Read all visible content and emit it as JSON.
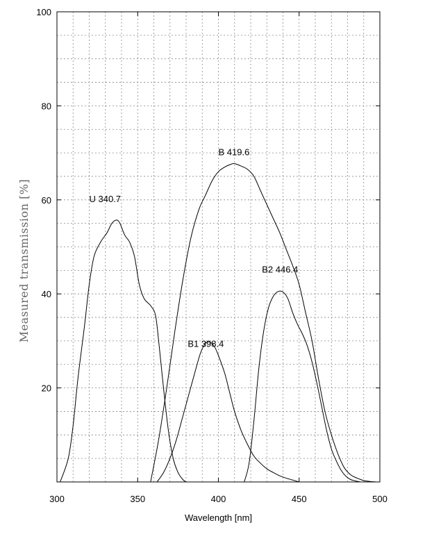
{
  "chart_data": {
    "type": "line",
    "xlabel": "Wavelength [nm]",
    "ylabel": "Measured transmission [%]",
    "xlim": [
      300,
      500
    ],
    "ylim": [
      0,
      100
    ],
    "x_ticks": [
      300,
      350,
      400,
      450,
      500
    ],
    "y_ticks": [
      20,
      40,
      60,
      80,
      100
    ],
    "grid": true,
    "annotations": [
      {
        "text": "U 340.7",
        "x": 320,
        "y": 59.5
      },
      {
        "text": "B 419.6",
        "x": 400,
        "y": 69.5
      },
      {
        "text": "B1 398.4",
        "x": 381,
        "y": 28.7
      },
      {
        "text": "B2 446.4",
        "x": 427,
        "y": 44.5
      }
    ],
    "series": [
      {
        "name": "U",
        "x": [
          302,
          307,
          310,
          313,
          317,
          320,
          323,
          327,
          331,
          334,
          337,
          339,
          342,
          345,
          348,
          351,
          354,
          358,
          361,
          363,
          366,
          369,
          372,
          375,
          378,
          380
        ],
        "y": [
          0,
          5,
          12,
          22,
          33,
          42,
          48,
          51,
          53,
          55,
          55.7,
          55,
          52.5,
          51,
          48,
          42,
          39,
          37.5,
          35.5,
          30,
          20,
          11,
          5,
          2,
          0.5,
          0
        ]
      },
      {
        "name": "B",
        "x": [
          358,
          363,
          368,
          373,
          378,
          383,
          388,
          392,
          396,
          400,
          404,
          408,
          410,
          414,
          418,
          422,
          426,
          430,
          434,
          438,
          442,
          446,
          450,
          454,
          458,
          462,
          466,
          470,
          474,
          478,
          482,
          486,
          490,
          494,
          498
        ],
        "y": [
          0,
          9,
          20,
          32,
          43,
          52,
          58,
          61,
          64,
          66,
          67,
          67.6,
          67.7,
          67.2,
          66.5,
          65,
          62,
          59,
          56,
          53,
          49.5,
          46,
          42,
          36,
          30,
          22,
          15,
          10,
          6,
          3,
          1.5,
          0.8,
          0.3,
          0.1,
          0
        ]
      },
      {
        "name": "B1",
        "x": [
          362,
          366,
          370,
          374,
          378,
          382,
          386,
          389,
          392,
          395,
          398,
          401,
          404,
          407,
          410,
          414,
          418,
          422,
          426,
          430,
          434,
          438,
          442,
          446,
          450
        ],
        "y": [
          0,
          2,
          5,
          9,
          14,
          19,
          24,
          27.5,
          29.5,
          29.7,
          28.5,
          26,
          23,
          19,
          15,
          11,
          8,
          5.5,
          4,
          2.8,
          2,
          1.3,
          0.8,
          0.4,
          0
        ]
      },
      {
        "name": "B2",
        "x": [
          416,
          419,
          422,
          425,
          428,
          431,
          434,
          437,
          440,
          443,
          446,
          449,
          452,
          455,
          458,
          461,
          464,
          467,
          470,
          473,
          476,
          479,
          482,
          485,
          488
        ],
        "y": [
          0,
          4,
          13,
          24,
          32,
          37,
          39.5,
          40.5,
          40.4,
          39,
          36,
          33.5,
          31.5,
          29,
          25.5,
          21,
          16,
          11,
          7,
          4.5,
          2.5,
          1.2,
          0.5,
          0.2,
          0
        ]
      }
    ]
  }
}
